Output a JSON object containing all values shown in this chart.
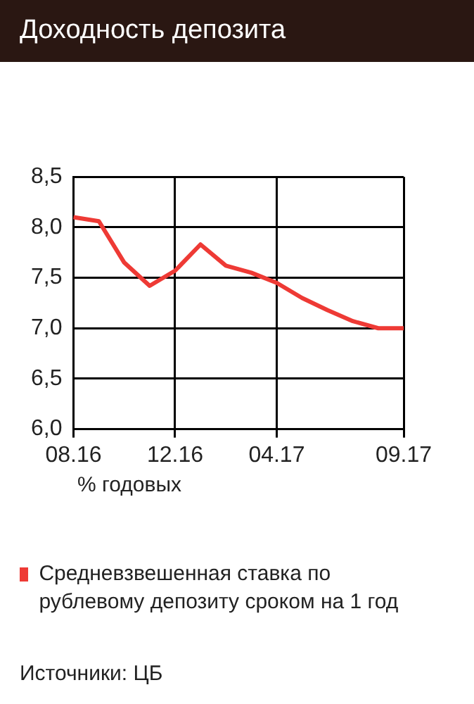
{
  "chart_data": {
    "type": "line",
    "title": "Доходность депозита",
    "categories": [
      "08.16",
      null,
      null,
      null,
      "12.16",
      null,
      null,
      null,
      "04.17",
      null,
      null,
      null,
      null,
      "09.17"
    ],
    "series": [
      {
        "name": "Средневзвешенная ставка по рублевому депозиту сроком на 1 год",
        "color": "#ee3a35",
        "values": [
          8.1,
          8.06,
          7.65,
          7.42,
          7.57,
          7.83,
          7.62,
          7.55,
          7.45,
          7.3,
          7.18,
          7.07,
          7.0,
          7.0
        ]
      }
    ],
    "ylim": [
      6.0,
      8.5
    ],
    "yticks": [
      {
        "value": 6.0,
        "label": "6,0"
      },
      {
        "value": 6.5,
        "label": "6,5"
      },
      {
        "value": 7.0,
        "label": "7,0"
      },
      {
        "value": 7.5,
        "label": "7,5"
      },
      {
        "value": 8.0,
        "label": "8,0"
      },
      {
        "value": 8.5,
        "label": "8,5"
      }
    ],
    "grid": true,
    "legend": "bottom",
    "marker": "none",
    "line_style": "solid",
    "annotations": [
      "% годовых",
      "Источники: ЦБ"
    ]
  }
}
